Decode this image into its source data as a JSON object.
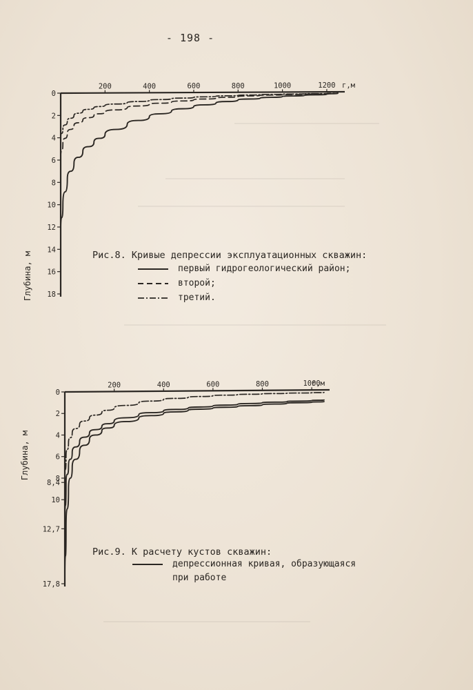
{
  "page_number": "- 198 -",
  "chart_data": [
    {
      "type": "line",
      "xlabel": "г,м",
      "ylabel": "Глубина, м",
      "x_ticks": [
        "200",
        "400",
        "600",
        "800",
        "1000",
        "1200"
      ],
      "y_ticks": [
        "0",
        "2",
        "4",
        "6",
        "8",
        "10",
        "12",
        "14",
        "16",
        "18"
      ],
      "xlim": [
        0,
        1250
      ],
      "ylim": [
        0,
        18
      ],
      "y_inverted": true,
      "caption": "Рис.8. Кривые депрессии эксплуатационных скважин:",
      "series": [
        {
          "name": "первый гидрогеологический район;",
          "style": "solid",
          "x": [
            0,
            10,
            30,
            60,
            100,
            150,
            200,
            300,
            400,
            500,
            600,
            700,
            800,
            900,
            1000,
            1100,
            1200,
            1250
          ],
          "y": [
            12.3,
            10.0,
            7.7,
            6.3,
            5.2,
            4.4,
            3.7,
            2.8,
            2.1,
            1.6,
            1.2,
            0.9,
            0.6,
            0.45,
            0.3,
            0.2,
            0.1,
            0.0
          ]
        },
        {
          "name": "второй;",
          "style": "dashed",
          "x": [
            0,
            10,
            30,
            60,
            100,
            150,
            200,
            300,
            400,
            500,
            600,
            700,
            800,
            900,
            1000,
            1100,
            1200,
            1250
          ],
          "y": [
            5.8,
            4.5,
            3.6,
            2.9,
            2.4,
            2.0,
            1.7,
            1.3,
            1.0,
            0.8,
            0.6,
            0.45,
            0.3,
            0.2,
            0.15,
            0.1,
            0.05,
            0.0
          ]
        },
        {
          "name": "третий.",
          "style": "dashdot",
          "x": [
            0,
            10,
            30,
            60,
            100,
            150,
            200,
            300,
            400,
            500,
            600,
            700,
            800,
            900,
            1000,
            1100,
            1200,
            1250
          ],
          "y": [
            4.0,
            3.2,
            2.5,
            2.0,
            1.6,
            1.3,
            1.1,
            0.85,
            0.65,
            0.5,
            0.38,
            0.28,
            0.2,
            0.14,
            0.1,
            0.06,
            0.03,
            0.0
          ]
        }
      ]
    },
    {
      "type": "line",
      "xlabel": "г,м",
      "ylabel": "Глубина, м",
      "x_ticks": [
        "200",
        "400",
        "600",
        "800",
        "1000"
      ],
      "y_ticks": [
        "0",
        "2",
        "4",
        "6",
        "8",
        "8,4",
        "10",
        "12,7",
        "17,8"
      ],
      "xlim": [
        0,
        1050
      ],
      "ylim": [
        0,
        17.8
      ],
      "y_inverted": true,
      "caption": "Рис.9. К расчету кустов скважин:",
      "legend_label_lines": [
        "депрессионная кривая, образующаяся",
        "при работе"
      ],
      "series": [
        {
          "name": "",
          "style": "solid",
          "x": [
            0,
            5,
            15,
            30,
            60,
            100,
            150,
            200,
            300,
            400,
            500,
            600,
            700,
            800,
            900,
            1000,
            1050
          ],
          "y": [
            17.8,
            12.7,
            9.0,
            7.0,
            5.5,
            4.4,
            3.6,
            3.1,
            2.4,
            2.0,
            1.7,
            1.5,
            1.35,
            1.2,
            1.05,
            0.95,
            0.9
          ]
        },
        {
          "name": "",
          "style": "solid",
          "x": [
            0,
            5,
            15,
            30,
            60,
            100,
            150,
            200,
            300,
            400,
            500,
            600,
            700,
            800,
            900,
            1000,
            1050
          ],
          "y": [
            12.7,
            8.4,
            6.9,
            5.6,
            4.6,
            3.8,
            3.2,
            2.7,
            2.1,
            1.75,
            1.5,
            1.3,
            1.15,
            1.0,
            0.9,
            0.8,
            0.75
          ]
        },
        {
          "name": "",
          "style": "dashdot",
          "x": [
            0,
            5,
            15,
            30,
            60,
            100,
            150,
            200,
            300,
            400,
            500,
            600,
            700,
            800,
            900,
            1000,
            1050
          ],
          "y": [
            8.4,
            6.0,
            4.7,
            3.8,
            3.0,
            2.4,
            1.9,
            1.5,
            1.0,
            0.7,
            0.5,
            0.35,
            0.25,
            0.18,
            0.12,
            0.08,
            0.05
          ]
        }
      ]
    }
  ]
}
